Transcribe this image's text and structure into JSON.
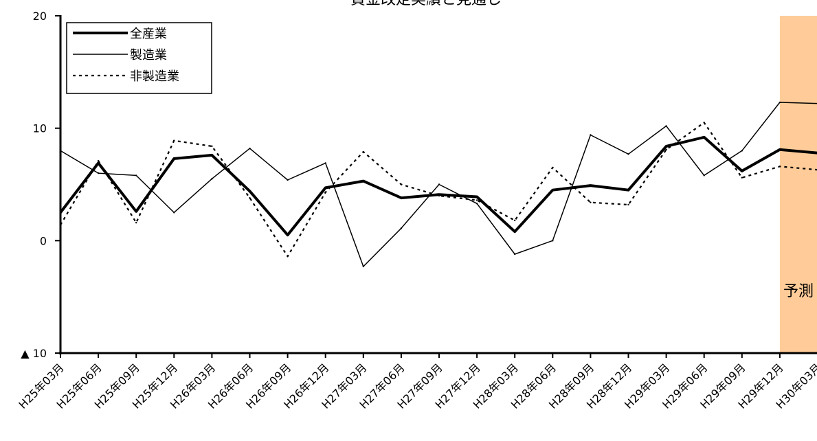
{
  "chart_data": {
    "type": "line",
    "title": "賃金改定実績と見通し",
    "xlabel": "",
    "ylabel": "",
    "ylim": [
      -10,
      20
    ],
    "y_ticks": [
      {
        "value": 20,
        "label": "20"
      },
      {
        "value": 10,
        "label": "10"
      },
      {
        "value": 0,
        "label": "0"
      },
      {
        "value": -10,
        "label": "▲ 10"
      }
    ],
    "categories": [
      "H25年03月",
      "H25年06月",
      "H25年09月",
      "H25年12月",
      "H26年03月",
      "H26年06月",
      "H26年09月",
      "H26年12月",
      "H27年03月",
      "H27年06月",
      "H27年09月",
      "H27年12月",
      "H28年03月",
      "H28年06月",
      "H28年09月",
      "H28年12月",
      "H29年03月",
      "H29年06月",
      "H29年09月",
      "H29年12月",
      "H30年03月"
    ],
    "series": [
      {
        "name": "全産業",
        "style": "thick-solid",
        "values": [
          2.5,
          6.9,
          2.6,
          7.3,
          7.6,
          4.4,
          0.5,
          4.7,
          5.3,
          3.8,
          4.1,
          3.9,
          0.8,
          4.5,
          4.9,
          4.5,
          8.4,
          9.2,
          6.2,
          8.1,
          7.8
        ]
      },
      {
        "name": "製造業",
        "style": "thin-solid",
        "values": [
          8.0,
          6.0,
          5.8,
          2.5,
          5.5,
          8.2,
          5.4,
          6.9,
          -2.3,
          1.1,
          5.0,
          3.3,
          -1.2,
          0.0,
          9.4,
          7.7,
          10.2,
          5.8,
          8.0,
          12.3,
          12.2
        ]
      },
      {
        "name": "非製造業",
        "style": "dotted",
        "values": [
          1.4,
          7.1,
          1.6,
          8.9,
          8.4,
          3.8,
          -1.4,
          4.3,
          7.9,
          5.0,
          4.0,
          3.6,
          1.8,
          6.5,
          3.4,
          3.2,
          8.1,
          10.5,
          5.6,
          6.6,
          6.3
        ]
      }
    ],
    "forecast": {
      "label": "予測",
      "start_index": 19,
      "color": "#ffcc99"
    },
    "legend_position": "top-left",
    "grid": false
  }
}
